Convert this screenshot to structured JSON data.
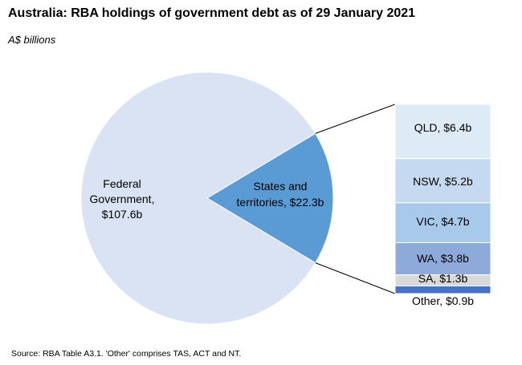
{
  "title": "Australia: RBA holdings of government debt as of 29 January 2021",
  "subtitle": "A$ billions",
  "source": "Source: RBA Table A3.1.  'Other' comprises TAS, ACT and NT.",
  "chart_data": {
    "type": "pie",
    "units": "A$ billions",
    "slices": [
      {
        "label_lines": [
          "Federal",
          "Government,",
          "$107.6b"
        ],
        "value": 107.6,
        "color": "#dae3f3"
      },
      {
        "label_lines": [
          "States and",
          "territories, $22.3b"
        ],
        "value": 22.3,
        "color": "#5b9bd5"
      }
    ],
    "breakdown": {
      "type": "stacked_bar",
      "of": "States and territories",
      "segments": [
        {
          "label": "QLD, $6.4b",
          "value": 6.4,
          "color": "#ddebf7"
        },
        {
          "label": "NSW, $5.2b",
          "value": 5.2,
          "color": "#c5daf0"
        },
        {
          "label": "VIC, $4.7b",
          "value": 4.7,
          "color": "#a9c9ea"
        },
        {
          "label": "WA, $3.8b",
          "value": 3.8,
          "color": "#8eaadb"
        },
        {
          "label": "SA, $1.3b",
          "value": 1.3,
          "color": "#d9d9d9"
        },
        {
          "label": "Other, $0.9b",
          "value": 0.9,
          "color": "#4472c4"
        }
      ]
    }
  }
}
